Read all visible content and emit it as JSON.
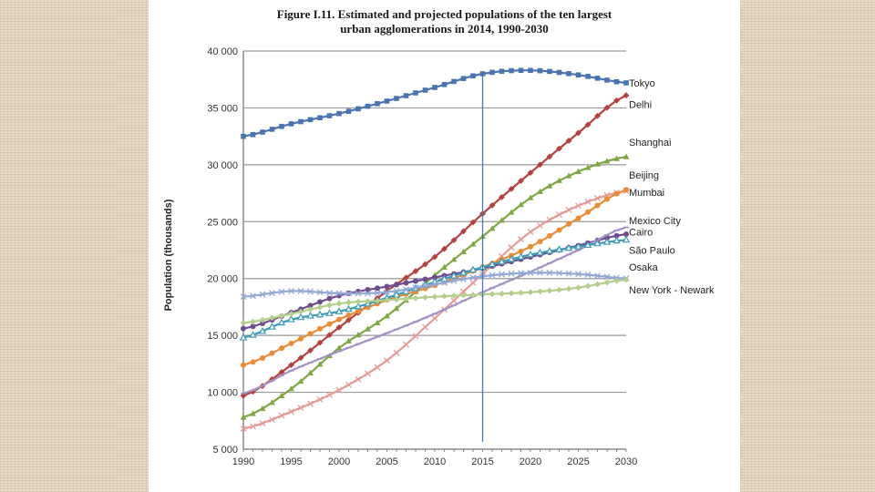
{
  "chart_data": {
    "type": "line",
    "title": "Figure I.11. Estimated and projected populations of the ten largest urban agglomerations in 2014, 1990-2030",
    "title_lines": [
      "Figure I.11. Estimated and projected populations of the ten largest",
      "urban agglomerations in 2014, 1990-2030"
    ],
    "xlabel": "",
    "ylabel": "Population (thousands)",
    "xlim": [
      1990,
      2030
    ],
    "ylim": [
      5000,
      40000
    ],
    "x_ticks": [
      "1990",
      "1995",
      "2000",
      "2005",
      "2010",
      "2015",
      "2020",
      "2025",
      "2030"
    ],
    "y_ticks": [
      "5 000",
      "10 000",
      "15 000",
      "20 000",
      "25 000",
      "30 000",
      "35 000",
      "40 000"
    ],
    "y_tick_values": [
      5000,
      10000,
      15000,
      20000,
      25000,
      30000,
      35000,
      40000
    ],
    "grid": "horizontal",
    "legend": "right-end labels",
    "reference_line_year": 2015,
    "x": [
      1990,
      1995,
      2000,
      2005,
      2010,
      2015,
      2020,
      2025,
      2030
    ],
    "series": [
      {
        "name": "Tokyo",
        "color": "#4a74b0",
        "marker": "square",
        "values": [
          32500,
          33600,
          34500,
          35600,
          36800,
          38000,
          38300,
          37900,
          37200
        ]
      },
      {
        "name": "Delhi",
        "color": "#b5403d",
        "marker": "diamond",
        "values": [
          9700,
          12400,
          15700,
          18900,
          21900,
          25700,
          29300,
          32800,
          36100
        ]
      },
      {
        "name": "Shanghai",
        "color": "#7fa744",
        "marker": "triangle",
        "values": [
          7800,
          10300,
          13900,
          16700,
          20300,
          23700,
          27100,
          29400,
          30700
        ]
      },
      {
        "name": "Beijing",
        "color": "#e59a98",
        "marker": "x",
        "values": [
          6800,
          8300,
          10200,
          12800,
          16500,
          20400,
          24100,
          26400,
          27700
        ]
      },
      {
        "name": "Mumbai",
        "color": "#ec8a35",
        "marker": "circle",
        "values": [
          12400,
          14300,
          16400,
          18100,
          19400,
          21000,
          22800,
          25300,
          27800
        ]
      },
      {
        "name": "Mexico City",
        "color": "#6f4c8e",
        "marker": "circle",
        "values": [
          15600,
          17000,
          18500,
          19300,
          20100,
          20900,
          21900,
          22900,
          23900
        ]
      },
      {
        "name": "Cairo",
        "color": "#a592c4",
        "marker": "dash",
        "values": [
          9900,
          11900,
          13600,
          15200,
          16900,
          18800,
          20600,
          22500,
          24500
        ]
      },
      {
        "name": "São Paulo",
        "color": "#3a9cb8",
        "marker": "triangle-open",
        "values": [
          14800,
          16400,
          17100,
          18300,
          19700,
          21000,
          22100,
          22800,
          23400
        ]
      },
      {
        "name": "Osaka",
        "color": "#92a8d6",
        "marker": "x",
        "values": [
          18400,
          18900,
          18700,
          18800,
          19500,
          20200,
          20500,
          20400,
          20000
        ]
      },
      {
        "name": "New York - Newark",
        "color": "#b4cf8c",
        "marker": "diamond",
        "values": [
          16100,
          16900,
          17800,
          18100,
          18400,
          18600,
          18800,
          19200,
          19900
        ]
      }
    ],
    "end_labels": [
      {
        "name": "Tokyo",
        "at": 37200
      },
      {
        "name": "Delhi",
        "at": 35300
      },
      {
        "name": "Shanghai",
        "at": 32000
      },
      {
        "name": "Beijing",
        "at": 29100
      },
      {
        "name": "Mumbai",
        "at": 27600
      },
      {
        "name": "Mexico City",
        "at": 25100
      },
      {
        "name": "Cairo",
        "at": 24100
      },
      {
        "name": "São Paulo",
        "at": 22500
      },
      {
        "name": "Osaka",
        "at": 21000
      },
      {
        "name": "New York - Newark",
        "at": 19000
      }
    ]
  }
}
